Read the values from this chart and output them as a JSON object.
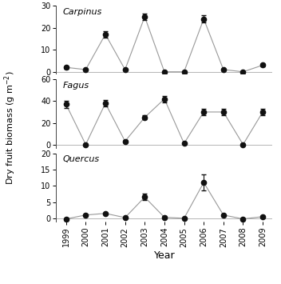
{
  "years": [
    1999,
    2000,
    2001,
    2002,
    2003,
    2004,
    2005,
    2006,
    2007,
    2008,
    2009
  ],
  "carpinus": {
    "values": [
      2,
      1,
      17,
      1,
      25,
      0,
      0,
      24,
      1,
      0,
      3
    ],
    "errors": [
      0.5,
      0.3,
      1.5,
      0.3,
      1.5,
      0.3,
      0.3,
      1.5,
      0.5,
      0.3,
      0.5
    ],
    "ylim": [
      -1,
      30
    ],
    "yticks": [
      0,
      10,
      20,
      30
    ],
    "label": "Carpinus"
  },
  "fagus": {
    "values": [
      37,
      0,
      38,
      3,
      25,
      42,
      1,
      30,
      30,
      0,
      30
    ],
    "errors": [
      3,
      0.3,
      3,
      1,
      2,
      3,
      0.3,
      3,
      3,
      0.3,
      3
    ],
    "ylim": [
      -3,
      60
    ],
    "yticks": [
      0,
      20,
      40,
      60
    ],
    "label": "Fagus"
  },
  "quercus": {
    "values": [
      -0.2,
      1,
      1.5,
      0.2,
      6.5,
      0.3,
      0,
      11,
      1,
      -0.2,
      0.5
    ],
    "errors": [
      0.2,
      0.3,
      0.3,
      0.2,
      1.0,
      0.3,
      0.2,
      2.5,
      0.3,
      0.2,
      0.3
    ],
    "ylim": [
      -1,
      20
    ],
    "yticks": [
      0,
      5,
      10,
      15,
      20
    ],
    "label": "Quercus"
  },
  "line_color": "#999999",
  "marker_color": "#111111",
  "ylabel": "Dry fruit biomass (g m-2)",
  "xlabel": "Year",
  "background_color": "#ffffff"
}
